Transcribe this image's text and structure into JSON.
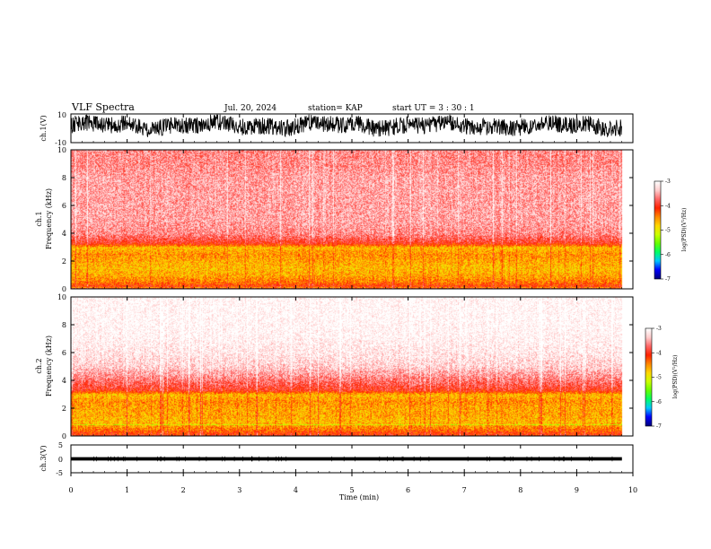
{
  "header": {
    "title": "VLF Spectra",
    "date": "Jul. 20, 2024",
    "station": "station= KAP",
    "start": "start  UT =  3 : 30 : 1"
  },
  "colors": {
    "background": "#ffffff",
    "axes": "#000000",
    "colormap": [
      "#000080",
      "#0000ff",
      "#00c8ff",
      "#00ff66",
      "#66ff00",
      "#ccff00",
      "#ffd700",
      "#ff8800",
      "#ff2200",
      "#ff6666",
      "#ffcccc",
      "#ffffff"
    ]
  },
  "chart_data": [
    {
      "type": "line",
      "name": "ch1-waveform",
      "ylabel": "ch.1(V)",
      "ylim": [
        -10,
        10
      ],
      "yticks": [
        "10",
        "-10"
      ],
      "xlim": [
        0,
        10
      ],
      "description_trace": {
        "mean": 2,
        "amplitude": 6,
        "x_end": 9.8
      }
    },
    {
      "type": "heatmap",
      "name": "ch1-spectrogram",
      "ylabel": "ch.1\nFrequency (kHz)",
      "ylabel_lines": [
        "ch.1",
        "Frequency (kHz)"
      ],
      "ylim": [
        0,
        10
      ],
      "yticks": [
        "0",
        "2",
        "4",
        "6",
        "8",
        "10"
      ],
      "xlim": [
        0,
        10
      ],
      "x_end": 9.8,
      "zlim": [
        -7,
        -3
      ],
      "profile_khz": [
        0,
        0.5,
        1,
        1.5,
        2,
        2.5,
        3,
        3.3,
        4,
        5,
        6,
        7,
        8,
        9,
        10
      ],
      "profile_logpsd": [
        -3.9,
        -4.4,
        -4.6,
        -4.7,
        -4.6,
        -4.5,
        -4.7,
        -4.0,
        -3.6,
        -3.5,
        -3.5,
        -3.5,
        -3.5,
        -3.6,
        -3.6
      ],
      "colorbar": {
        "ticks": [
          "-3",
          "-4",
          "-5",
          "-6",
          "-7"
        ],
        "label": "log(PSD)(V²/Hz)"
      }
    },
    {
      "type": "heatmap",
      "name": "ch2-spectrogram",
      "ylabel": "ch.2\nFrequency (kHz)",
      "ylabel_lines": [
        "ch.2",
        "Frequency (kHz)"
      ],
      "ylim": [
        0,
        10
      ],
      "yticks": [
        "0",
        "2",
        "4",
        "6",
        "8",
        "10"
      ],
      "xlim": [
        0,
        10
      ],
      "x_end": 9.8,
      "zlim": [
        -7,
        -3
      ],
      "profile_khz": [
        0,
        0.5,
        1,
        1.5,
        2,
        2.5,
        3,
        3.3,
        4,
        5,
        6,
        7,
        8,
        9,
        10
      ],
      "profile_logpsd": [
        -4.0,
        -4.4,
        -4.7,
        -4.6,
        -4.6,
        -4.5,
        -4.7,
        -4.0,
        -3.7,
        -3.3,
        -3.15,
        -3.05,
        -3.0,
        -3.0,
        -3.0
      ],
      "colorbar": {
        "ticks": [
          "-3",
          "-4",
          "-5",
          "-6",
          "-7"
        ],
        "label": "log(PSD)(V²/Hz)"
      }
    },
    {
      "type": "line",
      "name": "ch3-waveform",
      "ylabel": "ch.3(V)",
      "ylim": [
        -5,
        5
      ],
      "yticks": [
        "5",
        "0",
        "-5"
      ],
      "xlim": [
        0,
        10
      ],
      "description_trace": {
        "mean": 0,
        "amplitude": 0.5,
        "x_end": 9.8
      }
    }
  ],
  "xaxis": {
    "label": "Time (min)",
    "ticks": [
      "0",
      "1",
      "2",
      "3",
      "4",
      "5",
      "6",
      "7",
      "8",
      "9",
      "10"
    ],
    "range": [
      0,
      10
    ]
  }
}
